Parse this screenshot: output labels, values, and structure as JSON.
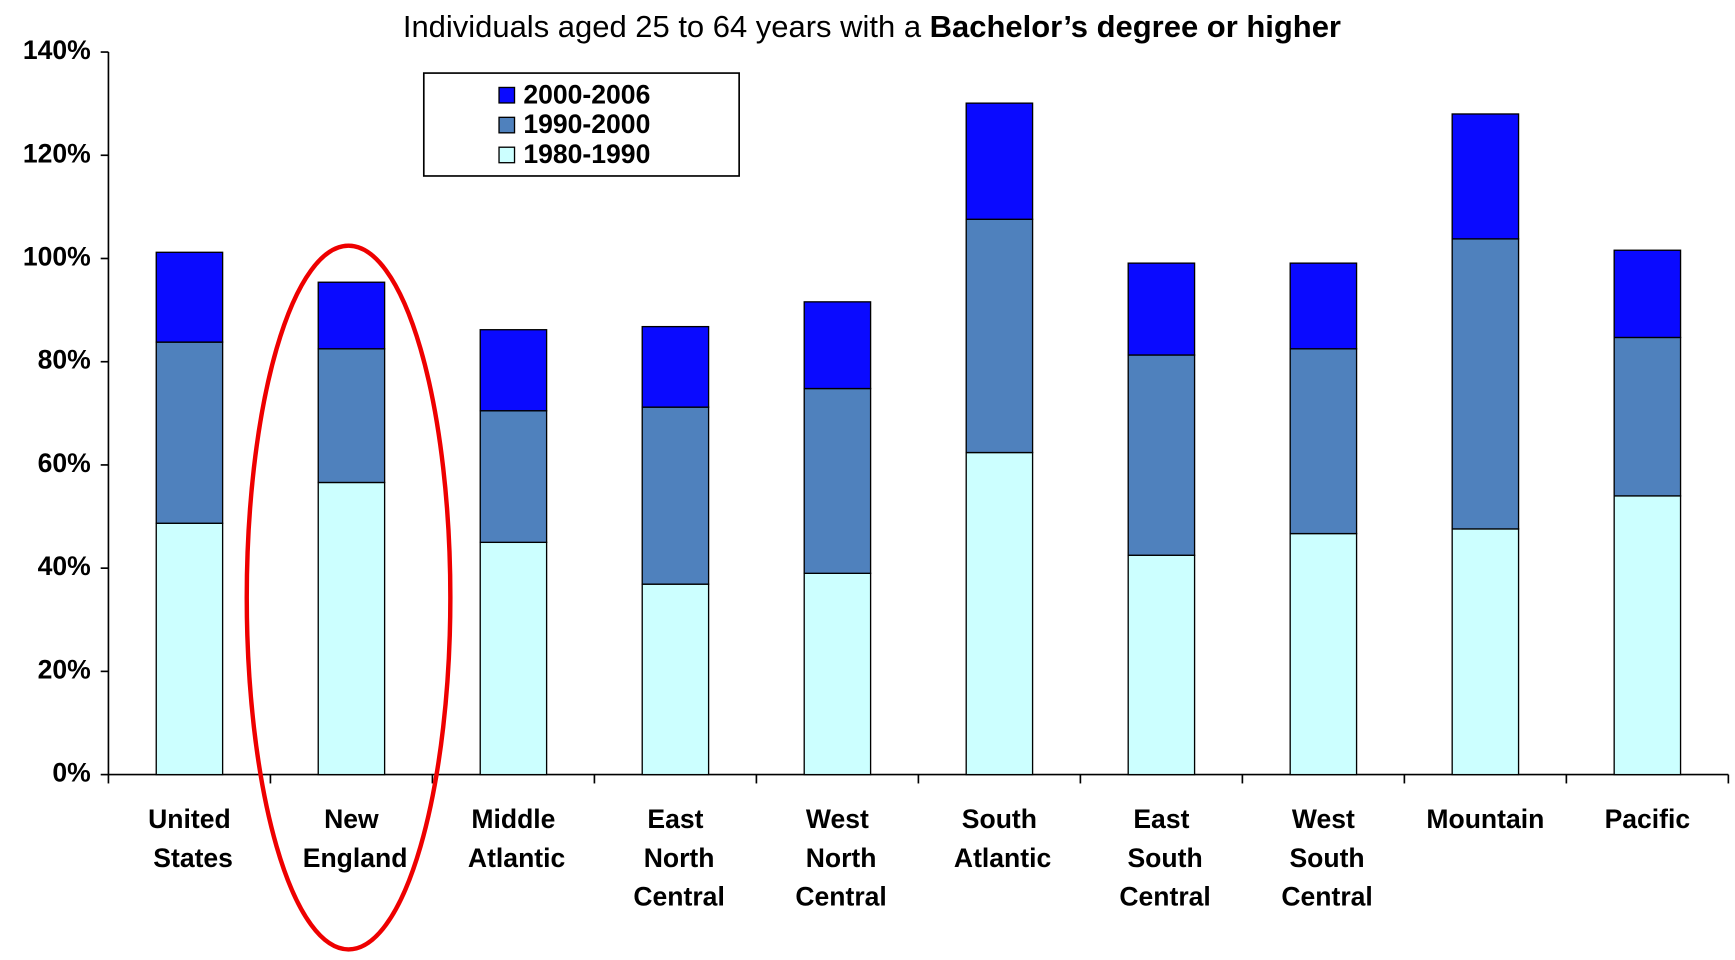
{
  "chart_data": {
    "type": "stacked_bar",
    "title": [
      "Individuals aged 25 to 64 years with a",
      "Bachelor’s degree or higher"
    ],
    "categories": [
      "United States",
      "New England",
      "Middle Atlantic",
      "East North Central",
      "West North Central",
      "South Atlantic",
      "East South Central",
      "West South Central",
      "Mountain",
      "Pacific"
    ],
    "series": [
      {
        "name": "1980-1990",
        "color": "#ccffff",
        "values": [
          48.7,
          56.6,
          45.0,
          36.9,
          39.0,
          62.4,
          42.5,
          46.7,
          47.6,
          54.0
        ]
      },
      {
        "name": "1990-2000",
        "color": "#4f81bd",
        "values": [
          35.1,
          25.9,
          25.5,
          34.3,
          35.8,
          45.2,
          38.8,
          35.8,
          56.2,
          30.7
        ]
      },
      {
        "name": "2000-2006",
        "color": "#0a0aff",
        "values": [
          17.4,
          12.9,
          15.7,
          15.6,
          16.8,
          22.5,
          17.8,
          16.6,
          24.2,
          16.9
        ]
      }
    ],
    "ylim": [
      0,
      140
    ],
    "yticks": [
      {
        "value": 0,
        "label": "0%"
      },
      {
        "value": 20,
        "label": "20%"
      },
      {
        "value": 40,
        "label": "40%"
      },
      {
        "value": 60,
        "label": "60%"
      },
      {
        "value": 80,
        "label": "80%"
      },
      {
        "value": 100,
        "label": "100%"
      },
      {
        "value": 120,
        "label": "120%"
      },
      {
        "value": 140,
        "label": "140%"
      }
    ]
  }
}
